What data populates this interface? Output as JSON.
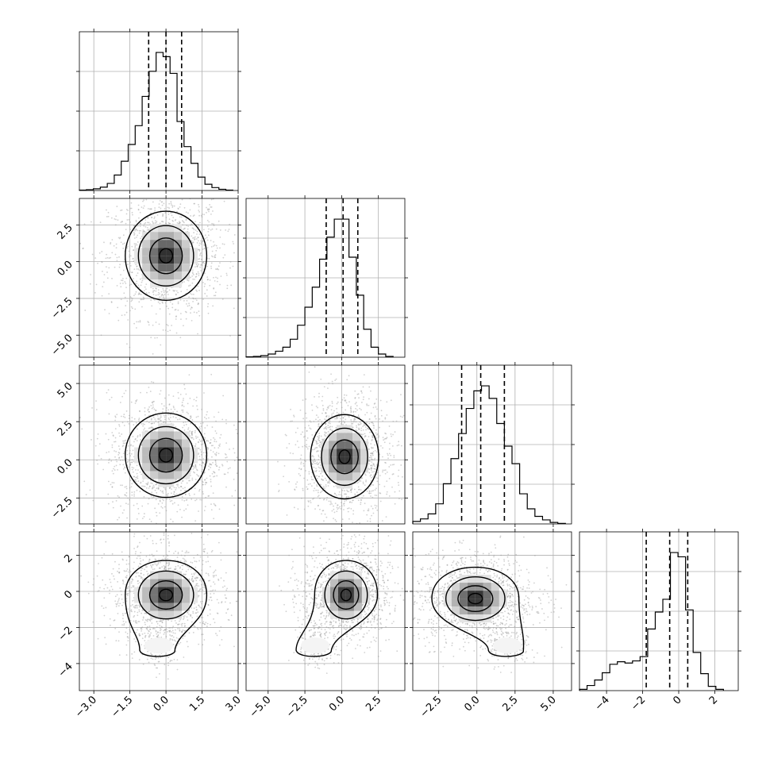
{
  "chart_data": {
    "type": "corner",
    "n_parameters": 4,
    "grid": true,
    "ticks": [
      {
        "param": 0,
        "values": [
          -3.0,
          -1.5,
          0.0,
          1.5,
          3.0
        ],
        "labels": [
          "−3.0",
          "−1.5",
          "0.0",
          "1.5",
          "3.0"
        ]
      },
      {
        "param": 1,
        "values": [
          -5.0,
          -2.5,
          0.0,
          2.5
        ],
        "labels": [
          "−5.0",
          "−2.5",
          "0.0",
          "2.5"
        ]
      },
      {
        "param": 2,
        "values": [
          -2.5,
          0.0,
          2.5,
          5.0
        ],
        "labels": [
          "−2.5",
          "0.0",
          "2.5",
          "5.0"
        ]
      },
      {
        "param": 3,
        "values": [
          -4,
          -2,
          0,
          2
        ],
        "labels": [
          "−4",
          "−2",
          "0",
          "2"
        ]
      }
    ],
    "axis_ranges": [
      [
        -3.6,
        3.0
      ],
      [
        -6.5,
        4.3
      ],
      [
        -4.2,
        6.2
      ],
      [
        -5.5,
        3.3
      ]
    ],
    "quantiles_16_50_84": [
      [
        -0.72,
        0.0,
        0.65
      ],
      [
        -1.05,
        0.1,
        1.1
      ],
      [
        -1.0,
        0.25,
        1.8
      ],
      [
        -1.8,
        -0.5,
        0.5
      ]
    ],
    "diagonal_histograms": [
      {
        "param": 0,
        "bin_edges": [
          -3.6,
          -3.31,
          -3.02,
          -2.73,
          -2.44,
          -2.15,
          -1.86,
          -1.57,
          -1.28,
          -0.99,
          -0.7,
          -0.41,
          -0.12,
          0.17,
          0.46,
          0.75,
          1.04,
          1.33,
          1.62,
          1.91,
          2.2,
          2.49,
          2.78
        ],
        "counts": [
          1,
          2,
          4,
          8,
          17,
          37,
          70,
          110,
          155,
          225,
          285,
          330,
          320,
          280,
          165,
          105,
          65,
          32,
          15,
          7,
          3,
          1
        ]
      },
      {
        "param": 1,
        "bin_edges": [
          -6.5,
          -6.0,
          -5.5,
          -5.0,
          -4.5,
          -4.0,
          -3.5,
          -3.0,
          -2.5,
          -2.0,
          -1.5,
          -1.0,
          -0.5,
          0.0,
          0.5,
          1.0,
          1.5,
          2.0,
          2.5,
          3.0,
          3.5
        ],
        "counts": [
          1,
          2,
          4,
          8,
          15,
          25,
          45,
          80,
          125,
          175,
          245,
          300,
          345,
          345,
          250,
          155,
          70,
          25,
          8,
          2
        ]
      },
      {
        "param": 2,
        "bin_edges": [
          -4.2,
          -3.7,
          -3.2,
          -2.7,
          -2.2,
          -1.7,
          -1.2,
          -0.7,
          -0.2,
          0.3,
          0.8,
          1.3,
          1.8,
          2.3,
          2.8,
          3.3,
          3.8,
          4.3,
          4.8,
          5.3,
          5.8
        ],
        "counts": [
          5,
          10,
          20,
          40,
          80,
          130,
          180,
          230,
          265,
          275,
          250,
          200,
          155,
          120,
          60,
          30,
          15,
          8,
          3,
          1
        ]
      },
      {
        "param": 3,
        "bin_edges": [
          -5.5,
          -5.08,
          -4.66,
          -4.24,
          -3.82,
          -3.4,
          -2.98,
          -2.56,
          -2.14,
          -1.72,
          -1.3,
          -0.88,
          -0.46,
          -0.04,
          0.38,
          0.8,
          1.22,
          1.64,
          2.06,
          2.48
        ],
        "counts": [
          3,
          12,
          25,
          42,
          62,
          68,
          65,
          70,
          80,
          145,
          185,
          215,
          325,
          315,
          190,
          90,
          40,
          10,
          3
        ]
      }
    ],
    "pairwise_panels": [
      {
        "x_param": 0,
        "y_param": 1,
        "center": [
          0.0,
          0.4
        ],
        "sigma": [
          0.95,
          1.7
        ],
        "tail": null,
        "levels_drawn": 4
      },
      {
        "x_param": 0,
        "y_param": 2,
        "center": [
          0.0,
          0.3
        ],
        "sigma": [
          0.95,
          1.55
        ],
        "tail": null,
        "levels_drawn": 4
      },
      {
        "x_param": 1,
        "y_param": 2,
        "center": [
          0.2,
          0.2
        ],
        "sigma": [
          1.3,
          1.55
        ],
        "tail": null,
        "levels_drawn": 4
      },
      {
        "x_param": 0,
        "y_param": 3,
        "center": [
          0.0,
          -0.2
        ],
        "sigma": [
          0.95,
          1.1
        ],
        "tail": [
          -0.3,
          -3.0
        ],
        "levels_drawn": 4
      },
      {
        "x_param": 1,
        "y_param": 3,
        "center": [
          0.3,
          -0.2
        ],
        "sigma": [
          1.2,
          1.1
        ],
        "tail": [
          -1.8,
          -3.0
        ],
        "levels_drawn": 4
      },
      {
        "x_param": 2,
        "y_param": 3,
        "center": [
          -0.1,
          -0.4
        ],
        "sigma": [
          1.6,
          1.0
        ],
        "tail": [
          2.0,
          -3.0
        ],
        "levels_drawn": 4
      }
    ]
  }
}
